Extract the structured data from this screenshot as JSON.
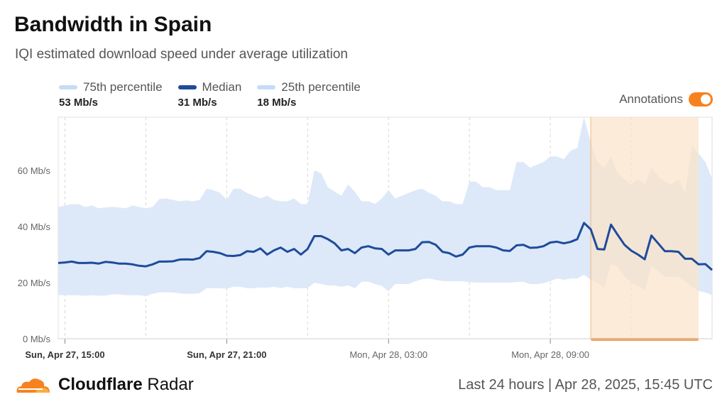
{
  "title": "Bandwidth in Spain",
  "subtitle": "IQI estimated download speed under average utilization",
  "legend": [
    {
      "name": "75th percentile",
      "value": "53 Mb/s",
      "color": "#c6dcf5"
    },
    {
      "name": "Median",
      "value": "31 Mb/s",
      "color": "#1f4b9c"
    },
    {
      "name": "25th percentile",
      "value": "18 Mb/s",
      "color": "#c6dcf5"
    }
  ],
  "annotations": {
    "label": "Annotations",
    "enabled": true,
    "color": "#f6821f"
  },
  "footer": {
    "brand_bold": "Cloudflare",
    "brand_light": " Radar",
    "range": "Last 24 hours | Apr 28, 2025, 15:45 UTC"
  },
  "colors": {
    "median": "#1f4b9c",
    "band": "#dde9f8",
    "annotation_region": "#fbe3c9",
    "annotation_bar": "#f0a055",
    "grid": "#d7d7d7",
    "axis_text": "#666666"
  },
  "chart_data": {
    "type": "area",
    "x_start": "Sun, Apr 27, 14:45",
    "x_step_minutes": 15,
    "x_tick_labels": [
      "Sun, Apr 27, 15:00",
      "Sun, Apr 27, 21:00",
      "Mon, Apr 28, 03:00",
      "Mon, Apr 28, 09:00"
    ],
    "bold_tick_labels": [
      "Sun, Apr 27, 15:00",
      "Sun, Apr 27, 21:00"
    ],
    "y_ticks": [
      0,
      20,
      40,
      60
    ],
    "y_tick_labels": [
      "0 Mb/s",
      "20 Mb/s",
      "40 Mb/s",
      "60 Mb/s"
    ],
    "ylim": [
      0,
      79
    ],
    "unit": "Mb/s",
    "annotation_range": [
      "Mon, Apr 28, 10:30",
      "Mon, Apr 28, 14:30"
    ],
    "series": [
      {
        "name": "Median",
        "values": [
          27,
          27.2,
          27.5,
          27,
          27,
          27.1,
          26.8,
          27.4,
          27.2,
          26.8,
          26.8,
          26.5,
          26,
          25.8,
          26.5,
          27.5,
          27.5,
          27.6,
          28.2,
          28.3,
          28.2,
          28.8,
          31.2,
          31,
          30.5,
          29.6,
          29.5,
          29.8,
          31.2,
          31,
          32.2,
          30,
          31.5,
          32.5,
          31,
          32,
          30,
          32,
          36.6,
          36.6,
          35.5,
          34,
          31.5,
          32,
          30.5,
          32.5,
          33,
          32.2,
          32,
          30,
          31.5,
          31.5,
          31.5,
          32,
          34.4,
          34.5,
          33.5,
          31,
          30.5,
          29.3,
          30,
          32.5,
          33,
          33,
          33,
          32.5,
          31.5,
          31.3,
          33.3,
          33.5,
          32.4,
          32.5,
          33,
          34.3,
          34.6,
          34,
          34.5,
          35.5,
          41.3,
          39,
          32,
          31.8,
          40.7,
          37,
          33.5,
          31.4,
          30,
          28.3,
          36.8,
          34,
          31.2,
          31.2,
          31,
          28.5,
          28.5,
          26.5,
          26.6,
          24.5
        ]
      },
      {
        "name": "75th percentile",
        "values": [
          47,
          47.5,
          48,
          48,
          47,
          47.5,
          46.5,
          46.8,
          47,
          46.8,
          46.5,
          47.5,
          47,
          46.5,
          47,
          49.8,
          50,
          49.5,
          49,
          49.3,
          49,
          49.5,
          53.5,
          53,
          52,
          49.5,
          53.5,
          53.5,
          52,
          51,
          50,
          51,
          49.5,
          49,
          49,
          50,
          48,
          48,
          60,
          59,
          54,
          52.5,
          51,
          55,
          52.5,
          49,
          49,
          48,
          50,
          53,
          50,
          51,
          52,
          53,
          53.5,
          52,
          51,
          49,
          49,
          48,
          48,
          56,
          56,
          54,
          54,
          53,
          53,
          53,
          63,
          63,
          61,
          62,
          63,
          65,
          65,
          64,
          67,
          68,
          79,
          70,
          63,
          61,
          65,
          59,
          57,
          55,
          57,
          55,
          61,
          58,
          56,
          55,
          57,
          52,
          69,
          66,
          63,
          57
        ]
      },
      {
        "name": "25th percentile",
        "values": [
          15.5,
          15.5,
          15.5,
          15.5,
          15.3,
          15.5,
          15.3,
          15.4,
          15.8,
          15.8,
          15.5,
          15.5,
          15.5,
          15.2,
          16,
          16.5,
          16.5,
          16.5,
          16.2,
          16,
          16,
          16.2,
          18,
          18,
          18,
          17.8,
          18.5,
          18.5,
          18,
          18,
          18.2,
          18.2,
          18.5,
          18,
          18.5,
          18,
          18,
          18,
          20,
          19.5,
          19,
          19,
          18.5,
          19,
          18,
          20.3,
          20.3,
          19.5,
          18.8,
          17,
          19.5,
          19.5,
          19.5,
          20.5,
          21.2,
          21.5,
          21,
          20.5,
          20.5,
          20.5,
          20.5,
          20.2,
          20,
          20,
          20,
          20,
          20,
          20,
          20.2,
          20.3,
          19.5,
          19.5,
          19.8,
          20.5,
          21.5,
          21,
          21.5,
          21.5,
          22.8,
          21,
          20,
          18,
          26.5,
          25.5,
          22,
          20,
          19,
          17,
          26,
          24,
          22,
          22,
          22,
          20.5,
          18.5,
          17,
          16.5,
          15.5
        ]
      }
    ]
  }
}
